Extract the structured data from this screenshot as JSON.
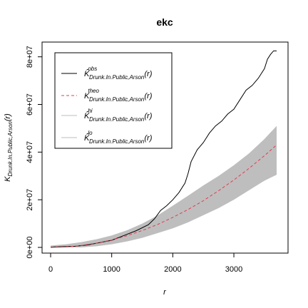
{
  "chart_data": {
    "type": "line",
    "title": "ekc",
    "xlabel": "r",
    "ylabel_main": "K",
    "ylabel_sub": "Drunk.In.Public,Arson",
    "ylabel_tail": "(r)",
    "xlim": [
      0,
      3700
    ],
    "ylim": [
      0,
      82000000
    ],
    "x_ticks": [
      0,
      1000,
      2000,
      3000
    ],
    "x_tick_labels": [
      "0",
      "1000",
      "2000",
      "3000"
    ],
    "y_ticks": [
      0,
      20000000,
      40000000,
      60000000,
      80000000
    ],
    "y_tick_labels": [
      "0e+00",
      "2e+07",
      "4e+07",
      "6e+07",
      "8e+07"
    ],
    "legend_position": "top-left",
    "legend": [
      {
        "main": "K̂",
        "sup": "obs",
        "sub": "Drunk.In.Public,Arson",
        "tail": "(r)",
        "style": "solid",
        "color": "#000000"
      },
      {
        "main": "K",
        "sup": "theo",
        "sub": "Drunk.In.Public,Arson",
        "tail": "(r)",
        "style": "dashed",
        "color": "#e8384f"
      },
      {
        "main": "K̂",
        "sup": "hi",
        "sub": "Drunk.In.Public,Arson",
        "tail": "(r)",
        "style": "solid",
        "color": "#bebebe"
      },
      {
        "main": "K̂",
        "sup": "lo",
        "sub": "Drunk.In.Public,Arson",
        "tail": "(r)",
        "style": "solid",
        "color": "#bebebe"
      }
    ],
    "series": [
      {
        "name": "obs",
        "color": "#000000",
        "x": [
          0,
          200,
          400,
          600,
          800,
          1000,
          1200,
          1400,
          1600,
          1700,
          1800,
          1900,
          2000,
          2100,
          2200,
          2250,
          2300,
          2400,
          2500,
          2600,
          2700,
          2800,
          2900,
          3000,
          3100,
          3200,
          3300,
          3400,
          3500,
          3550,
          3600,
          3650,
          3700
        ],
        "y": [
          100000,
          300000,
          500000,
          1000000,
          2000000,
          3000000,
          5000000,
          7000000,
          9500000,
          12000000,
          15500000,
          17500000,
          20000000,
          23000000,
          27000000,
          31000000,
          36000000,
          41000000,
          44000000,
          48000000,
          51000000,
          53000000,
          56000000,
          58000000,
          62000000,
          66000000,
          68000000,
          71000000,
          75000000,
          79000000,
          81000000,
          82500000,
          82500000
        ]
      },
      {
        "name": "theo",
        "color": "#e8384f",
        "x": [
          0,
          250,
          500,
          750,
          1000,
          1250,
          1500,
          1750,
          2000,
          2250,
          2500,
          2750,
          3000,
          3250,
          3500,
          3700
        ],
        "y": [
          0,
          200000,
          800000,
          1800000,
          3100000,
          4900000,
          7100000,
          9600000,
          12600000,
          15900000,
          19600000,
          23800000,
          28300000,
          33200000,
          38500000,
          43000000
        ]
      },
      {
        "name": "hi",
        "color": "#bebebe",
        "x": [
          0,
          250,
          500,
          750,
          1000,
          1250,
          1500,
          1750,
          2000,
          2250,
          2500,
          2750,
          3000,
          3250,
          3500,
          3700
        ],
        "y": [
          800000,
          1300000,
          2200000,
          3400000,
          5000000,
          7200000,
          10000000,
          13400000,
          17500000,
          21700000,
          26000000,
          30000000,
          34500000,
          39500000,
          45500000,
          51000000
        ]
      },
      {
        "name": "lo",
        "color": "#bebebe",
        "x": [
          0,
          250,
          500,
          750,
          1000,
          1250,
          1500,
          1750,
          2000,
          2250,
          2500,
          2750,
          3000,
          3250,
          3500,
          3700
        ],
        "y": [
          0,
          0,
          0,
          500000,
          1300000,
          2500000,
          4000000,
          6000000,
          8000000,
          10500000,
          13500000,
          16500000,
          20000000,
          24000000,
          28000000,
          30500000
        ]
      }
    ]
  }
}
